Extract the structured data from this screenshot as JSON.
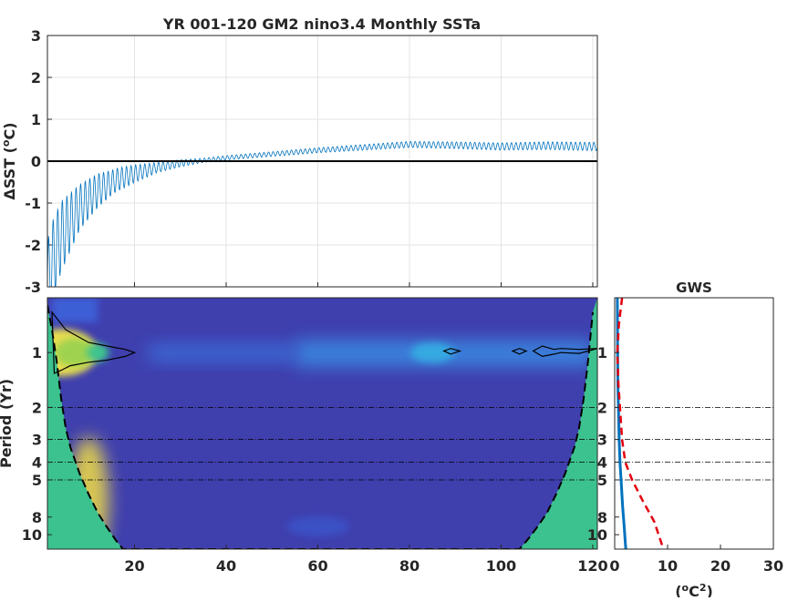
{
  "chart_data": [
    {
      "type": "line",
      "title": "YR 001-120 GM2 nino3.4 Monthly SSTa",
      "ylabel": "ΔSST (°C)",
      "ylabel_parts": {
        "pre": "ΔSST (",
        "sup": "o",
        "post": "C)"
      },
      "xlim": [
        1,
        121
      ],
      "ylim": [
        -3,
        3
      ],
      "yticks": [
        "3",
        "2",
        "1",
        "0",
        "-1",
        "-2",
        "-3"
      ],
      "ytick_values": [
        3,
        2,
        1,
        0,
        -1,
        -2,
        -3
      ],
      "xtick_values": [
        20,
        40,
        60,
        80,
        100,
        120
      ],
      "grid": true,
      "line_color": "#0072BD",
      "zero_line_color": "#000000",
      "series": [
        {
          "style": "seasonal oscillation around a slowly recovering mean",
          "mean_x": [
            1,
            2,
            4,
            8,
            12,
            16,
            20,
            25,
            30,
            35,
            40,
            50,
            60,
            70,
            80,
            90,
            100,
            110,
            121
          ],
          "mean_y": [
            -2.9,
            -2.4,
            -1.8,
            -1.1,
            -0.7,
            -0.45,
            -0.3,
            -0.15,
            -0.05,
            0.02,
            0.08,
            0.17,
            0.26,
            0.33,
            0.4,
            0.38,
            0.35,
            0.37,
            0.35
          ],
          "amp_x": [
            1,
            4,
            8,
            15,
            25,
            35,
            60,
            121
          ],
          "amp_y": [
            1.0,
            0.85,
            0.55,
            0.3,
            0.12,
            0.05,
            0.06,
            0.1
          ]
        }
      ]
    },
    {
      "type": "heatmap",
      "ylabel": "Period (Yr)",
      "xlim": [
        1,
        121
      ],
      "ylim": [
        0.5,
        12
      ],
      "y_scale": "log",
      "xticks": [
        "20",
        "40",
        "60",
        "80",
        "100",
        "120"
      ],
      "xtick_values": [
        20,
        40,
        60,
        80,
        100,
        120
      ],
      "yticks": [
        "1",
        "2",
        "3",
        "4",
        "5",
        "8",
        "10"
      ],
      "ytick_values": [
        1,
        2,
        3,
        4,
        5,
        8,
        10
      ],
      "reference_periods": [
        2,
        3,
        4,
        5
      ],
      "background_color": "#3F3FAE",
      "cone_color": "#3CC28E",
      "blobs": [
        {
          "x": 4,
          "period": 1.0,
          "color": "#F4E64A"
        },
        {
          "x": 7,
          "period": 1.0,
          "color": "#9FD34F"
        },
        {
          "x": 12,
          "period": 1.0,
          "color": "#3CC48F"
        },
        {
          "x": 85,
          "period": 1.0,
          "color": "#36A9E1"
        },
        {
          "x": 60,
          "period": 9.0,
          "color": "#3B55C9"
        }
      ],
      "cone_of_influence": {
        "x": [
          1,
          2,
          3,
          4,
          5,
          6,
          8,
          10,
          12,
          14,
          16,
          17.5,
          104,
          106,
          108,
          110,
          112,
          114,
          116,
          117,
          118,
          119,
          120
        ],
        "period": [
          0.55,
          0.75,
          1.1,
          1.8,
          2.6,
          3.3,
          4.6,
          6.0,
          7.6,
          9.1,
          10.8,
          12.0,
          12.0,
          10.5,
          9.0,
          7.6,
          6.0,
          4.6,
          3.3,
          2.6,
          1.8,
          1.1,
          0.6
        ]
      },
      "significance_contours": [
        {
          "x": [
            2,
            5,
            10,
            15,
            18,
            20,
            18,
            14,
            10,
            6,
            4,
            2.5
          ],
          "period": [
            0.6,
            0.75,
            0.88,
            0.93,
            0.96,
            1.0,
            1.05,
            1.1,
            1.13,
            1.18,
            1.25,
            1.3
          ]
        },
        {
          "x": [
            87.5,
            89,
            91,
            89,
            87.5
          ],
          "period": [
            0.98,
            0.95,
            0.98,
            1.02,
            0.98
          ]
        },
        {
          "x": [
            102.5,
            104,
            105.5,
            104,
            102.5
          ],
          "period": [
            0.98,
            0.95,
            0.98,
            1.02,
            0.98
          ]
        },
        {
          "x": [
            107,
            109,
            111.5,
            113,
            117,
            121,
            117,
            113,
            111.5,
            109,
            107
          ],
          "period": [
            0.98,
            0.92,
            0.96,
            0.95,
            0.96,
            0.95,
            1.01,
            1.0,
            1.02,
            1.05,
            0.98
          ]
        }
      ]
    },
    {
      "type": "line",
      "title": "GWS",
      "xlabel": "(°C²)",
      "xlabel_parts": {
        "pre": "(",
        "sup1": "o",
        "mid": "C",
        "sup2": "2",
        "post": ")"
      },
      "xlim": [
        0,
        30
      ],
      "ylim": [
        0.5,
        12
      ],
      "y_scale": "log",
      "xticks": [
        "0",
        "10",
        "20",
        "30"
      ],
      "xtick_values": [
        0,
        10,
        20,
        30
      ],
      "reference_periods": [
        2,
        3,
        4,
        5
      ],
      "series": [
        {
          "name": "",
          "color": "#0072BD",
          "style": "solid",
          "x": [
            0.5,
            0.55,
            0.6,
            0.7,
            0.85,
            1.0,
            1.2,
            1.5,
            1.8,
            2.0,
            2.1
          ],
          "period": [
            0.5,
            1.0,
            1.5,
            2,
            3,
            4,
            5,
            7,
            9,
            11,
            12
          ]
        },
        {
          "name": "",
          "color": "#E3000F",
          "style": "dashed",
          "x": [
            1.4,
            0.8,
            0.5,
            0.7,
            1.0,
            1.4,
            2.0,
            3.3,
            5.3,
            7.5,
            9.2
          ],
          "period": [
            0.5,
            0.7,
            1.0,
            1.5,
            2,
            3,
            4,
            5,
            6.5,
            8.5,
            12
          ]
        }
      ]
    }
  ]
}
